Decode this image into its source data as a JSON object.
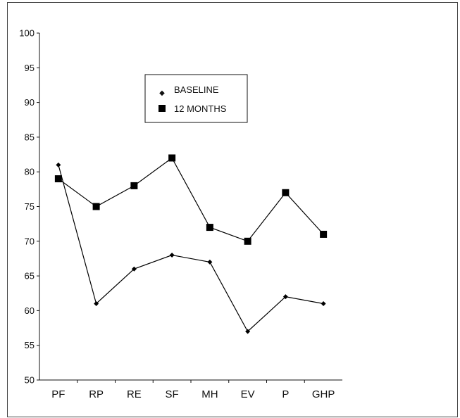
{
  "chart_data": {
    "type": "line",
    "categories": [
      "PF",
      "RP",
      "RE",
      "SF",
      "MH",
      "EV",
      "P",
      "GHP"
    ],
    "ylim": [
      50,
      100
    ],
    "yticks": [
      50,
      55,
      60,
      65,
      70,
      75,
      80,
      85,
      90,
      95,
      100
    ],
    "grid": false,
    "legend_position": "upper-middle, inside plot",
    "series": [
      {
        "name": "BASELINE",
        "marker": "diamond",
        "color": "#000000",
        "values": [
          81,
          61,
          66,
          68,
          67,
          57,
          62,
          61
        ]
      },
      {
        "name": "12 MONTHS",
        "marker": "square",
        "color": "#000000",
        "values": [
          79,
          75,
          78,
          82,
          72,
          70,
          77,
          71
        ]
      }
    ]
  }
}
